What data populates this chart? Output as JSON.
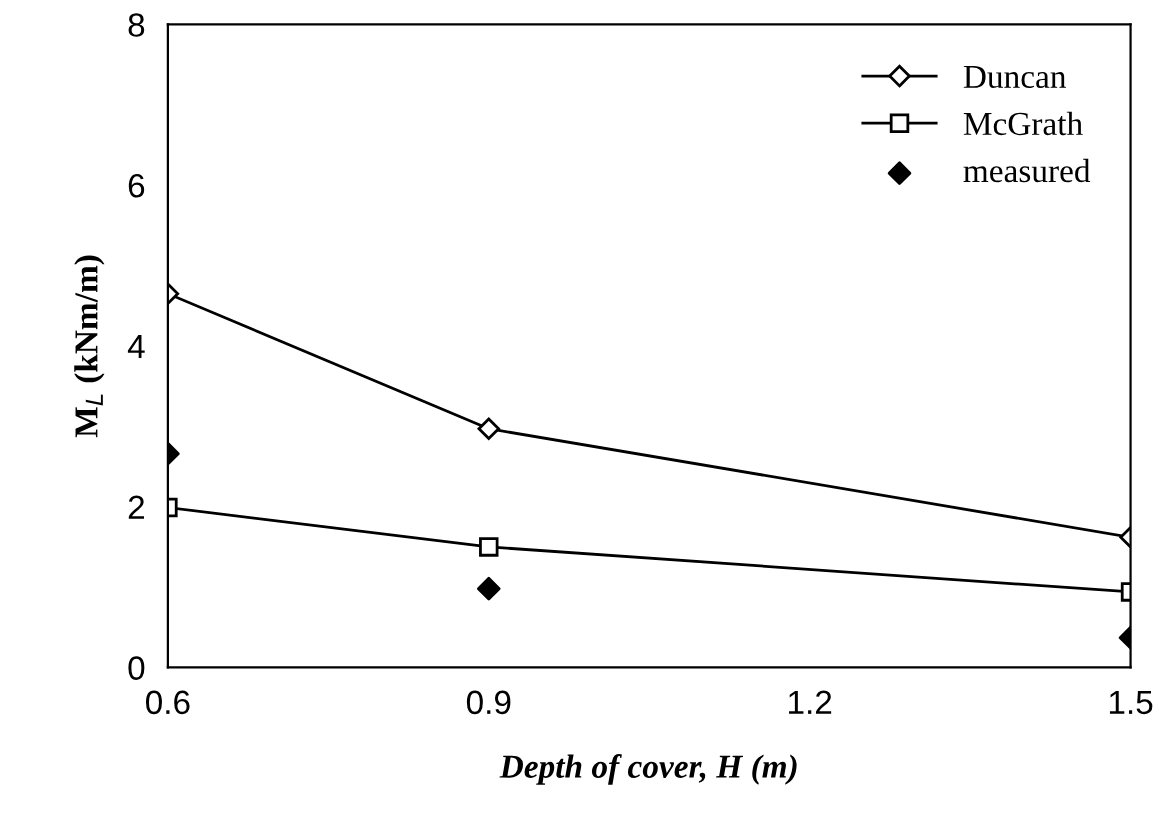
{
  "chart_data": {
    "type": "line",
    "xlabel": "Depth of cover, H (m)",
    "ylabel": "M$_{L}$ (kNm/m)",
    "x": [
      0.6,
      0.9,
      1.5
    ],
    "series": [
      {
        "name": "Duncan",
        "color": "#000000",
        "values": [
          4.65,
          2.97,
          1.62
        ],
        "marker": "diamond"
      },
      {
        "name": "McGrath",
        "color": "#000000",
        "values": [
          1.99,
          1.5,
          0.94
        ],
        "marker": "square"
      },
      {
        "name": "measured",
        "color": "#000000",
        "values": [
          2.66,
          0.98,
          0.37
        ],
        "type": "scatter",
        "marker": "diamond"
      }
    ],
    "xlim": [
      0.6,
      1.5
    ],
    "xticks": [
      0.6,
      0.9,
      1.2,
      1.5
    ],
    "ylim": [
      0,
      8
    ],
    "yticks": [
      0,
      2,
      4,
      6,
      8
    ],
    "grid": false,
    "legend": "top right"
  }
}
